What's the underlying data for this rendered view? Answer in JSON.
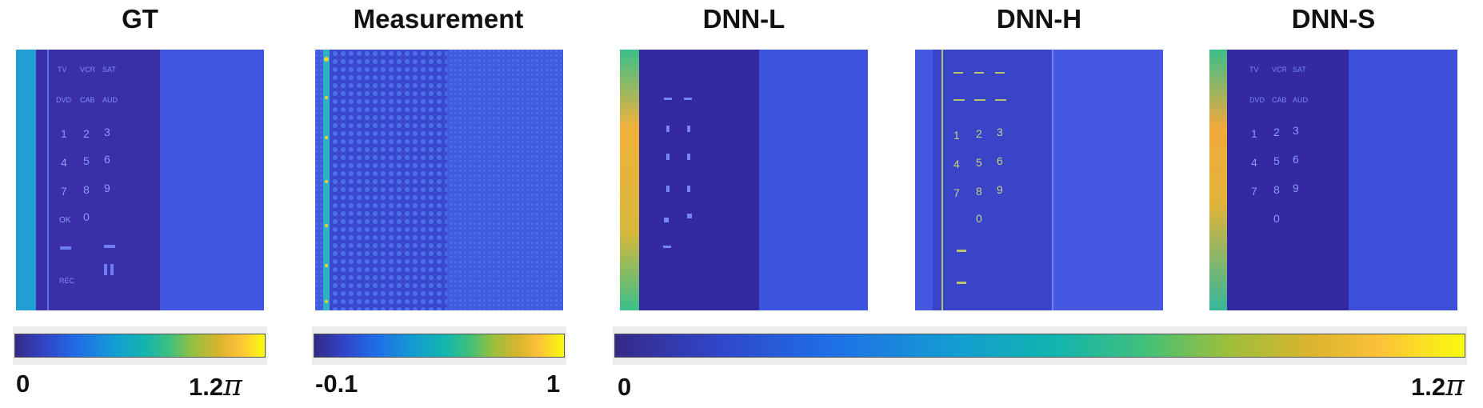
{
  "panels": [
    {
      "title": "GT"
    },
    {
      "title": "Measurement"
    },
    {
      "title": "DNN-L"
    },
    {
      "title": "DNN-H"
    },
    {
      "title": "DNN-S"
    }
  ],
  "colorbars": [
    {
      "min": "0",
      "max": "1.2",
      "max_symbol": "π"
    },
    {
      "min": "-0.1",
      "max": "1"
    },
    {
      "min": "0",
      "max": "1.2",
      "max_symbol": "π"
    }
  ],
  "remote_labels": {
    "row1": [
      "TV",
      "VCR",
      "SAT"
    ],
    "row2": [
      "DVD",
      "CAB",
      "AUD"
    ],
    "digits": [
      "1",
      "2",
      "3",
      "4",
      "5",
      "6",
      "7",
      "8",
      "9",
      "OK",
      "0"
    ],
    "rec": "REC"
  },
  "colormap": [
    "#352a87",
    "#3145c9",
    "#1f6ee6",
    "#139dd2",
    "#12b5ae",
    "#3fc07c",
    "#9cbf3b",
    "#dbb42f",
    "#fcc238",
    "#f9fb0e"
  ]
}
